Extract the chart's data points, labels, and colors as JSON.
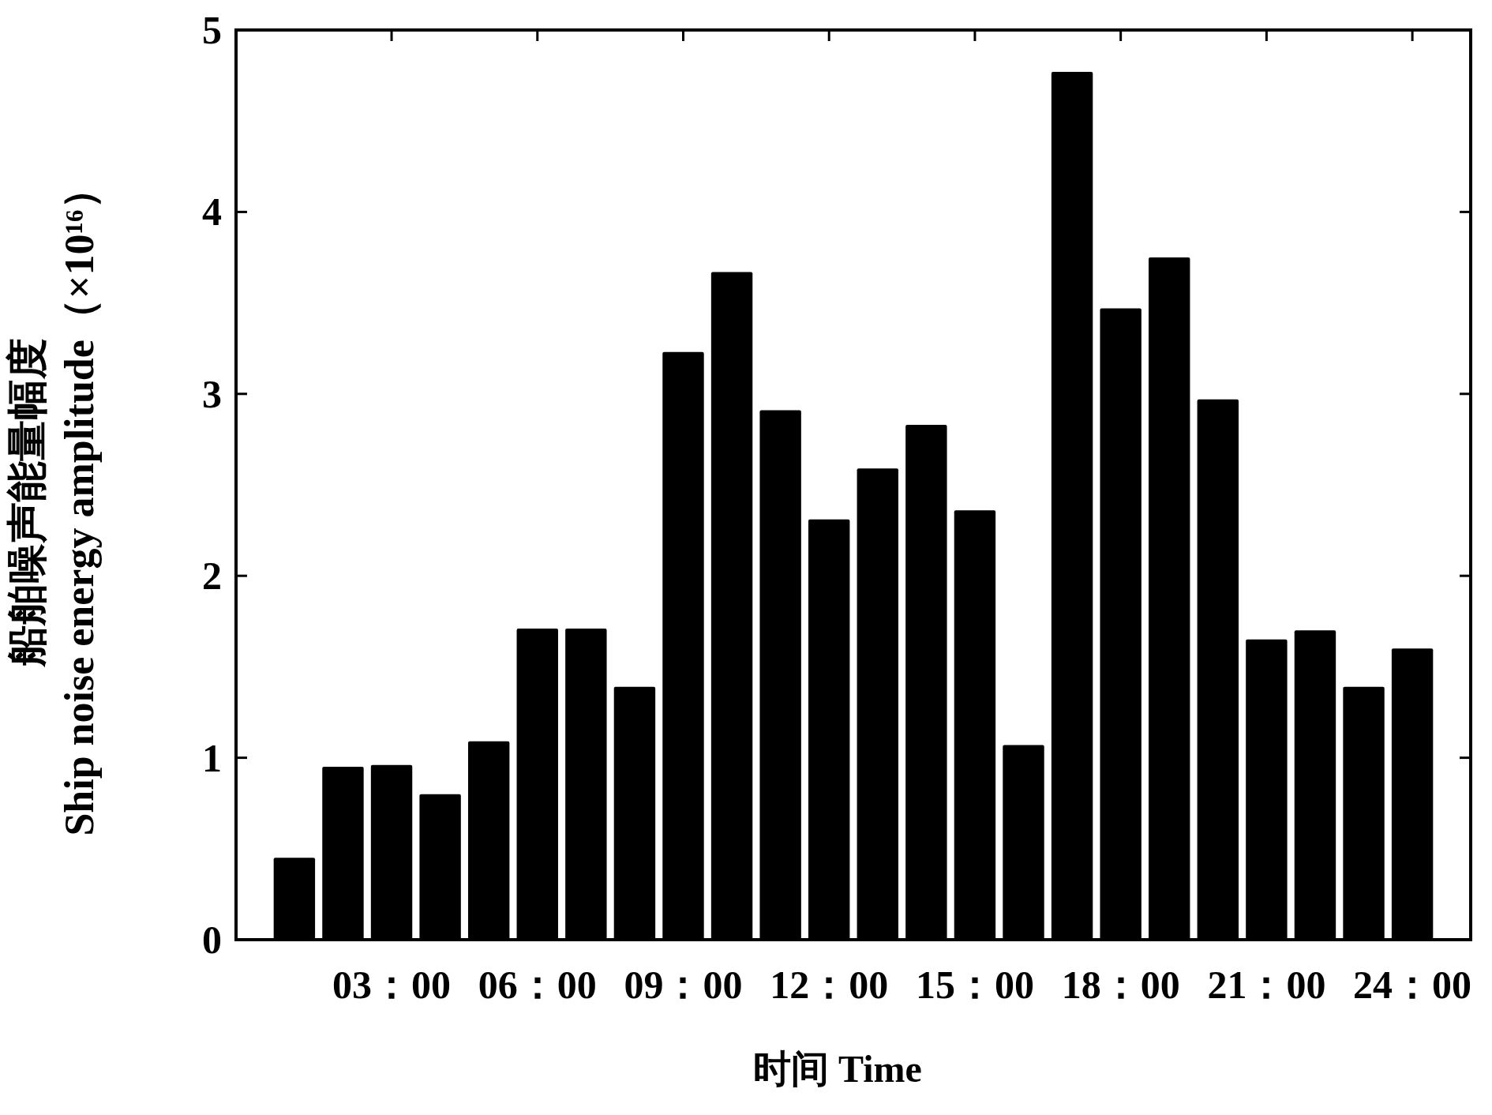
{
  "chart_data": {
    "type": "bar",
    "xlabel": "时间 Time",
    "ylabel": "船舶噪声能量幅度\nShip noise energy amplitude（×10¹⁶）",
    "categories": [
      null,
      null,
      "03：00",
      null,
      null,
      "06：00",
      null,
      null,
      "09：00",
      null,
      null,
      "12：00",
      null,
      null,
      "15：00",
      null,
      null,
      "18：00",
      null,
      null,
      "21：00",
      null,
      null,
      "24：00"
    ],
    "values": [
      0.45,
      0.95,
      0.96,
      0.8,
      1.09,
      1.71,
      1.71,
      1.39,
      3.23,
      3.67,
      2.91,
      2.31,
      2.59,
      2.83,
      2.36,
      1.07,
      4.77,
      3.47,
      3.75,
      2.97,
      1.65,
      1.7,
      1.39,
      1.6
    ],
    "color": "#000000",
    "ylim": [
      0,
      5
    ],
    "yticks": [
      0,
      1,
      2,
      3,
      4,
      5
    ]
  }
}
